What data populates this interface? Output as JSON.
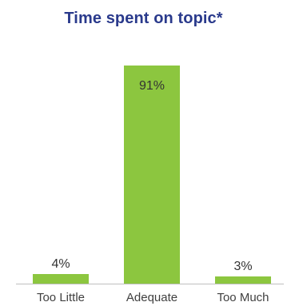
{
  "chart_data": {
    "type": "bar",
    "title": "Time spent on topic*",
    "xlabel": "",
    "ylabel": "",
    "categories": [
      "Too Little",
      "Adequate",
      "Too Much"
    ],
    "values": [
      4,
      91,
      3
    ],
    "data_labels": [
      "4%",
      "91%",
      "3%"
    ],
    "ylim": [
      0,
      100
    ],
    "grid": false,
    "legend": "none"
  },
  "colors": {
    "bar": "#8cc63f",
    "title": "#2a3a8c",
    "axis": "#bfbfbf"
  }
}
